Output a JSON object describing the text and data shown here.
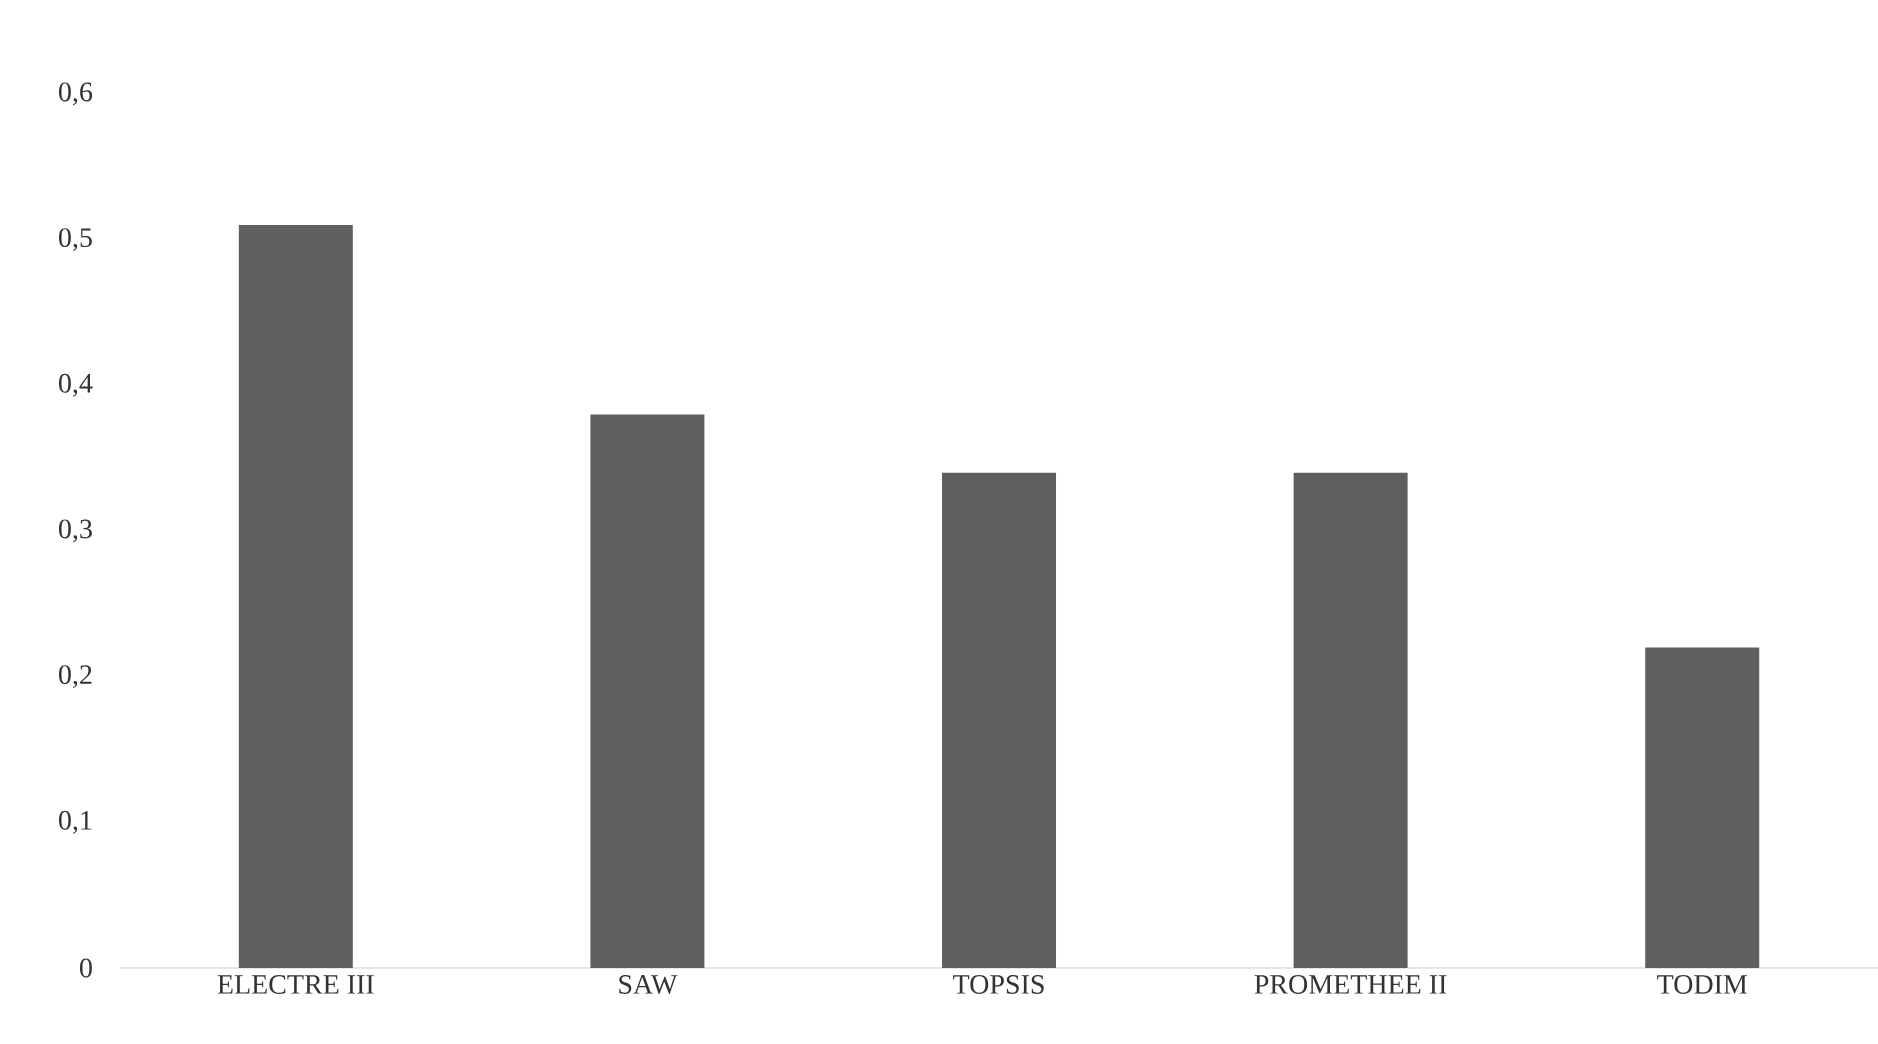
{
  "chart_data": {
    "type": "bar",
    "categories": [
      "ELECTRE III",
      "SAW",
      "TOPSIS",
      "PROMETHEE II",
      "TODIM"
    ],
    "values": [
      0.51,
      0.38,
      0.34,
      0.34,
      0.22
    ],
    "color": "#5f5f5f",
    "ylim": [
      0,
      0.6
    ],
    "yticks": [
      {
        "value": 0,
        "label": "0"
      },
      {
        "value": 0.1,
        "label": "0,1"
      },
      {
        "value": 0.2,
        "label": "0,2"
      },
      {
        "value": 0.3,
        "label": "0,3"
      },
      {
        "value": 0.4,
        "label": "0,4"
      },
      {
        "value": 0.5,
        "label": "0,5"
      },
      {
        "value": 0.6,
        "label": "0,6"
      }
    ],
    "grid": false
  }
}
